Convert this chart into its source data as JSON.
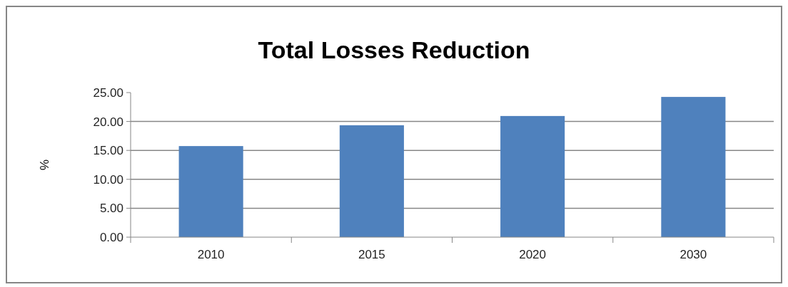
{
  "chart_data": {
    "type": "bar",
    "title": "Total Losses Reduction",
    "ylabel": "%",
    "categories": [
      "2010",
      "2015",
      "2020",
      "2030"
    ],
    "values": [
      15.75,
      19.35,
      20.95,
      24.25
    ],
    "color": "#4f81bd",
    "ylim": [
      0,
      25
    ],
    "yticks": [
      {
        "value": 0,
        "label": "0.00"
      },
      {
        "value": 5,
        "label": "5.00"
      },
      {
        "value": 10,
        "label": "10.00"
      },
      {
        "value": 15,
        "label": "15.00"
      },
      {
        "value": 20,
        "label": "20.00"
      },
      {
        "value": 25,
        "label": "25.00"
      }
    ],
    "grid": "y"
  }
}
